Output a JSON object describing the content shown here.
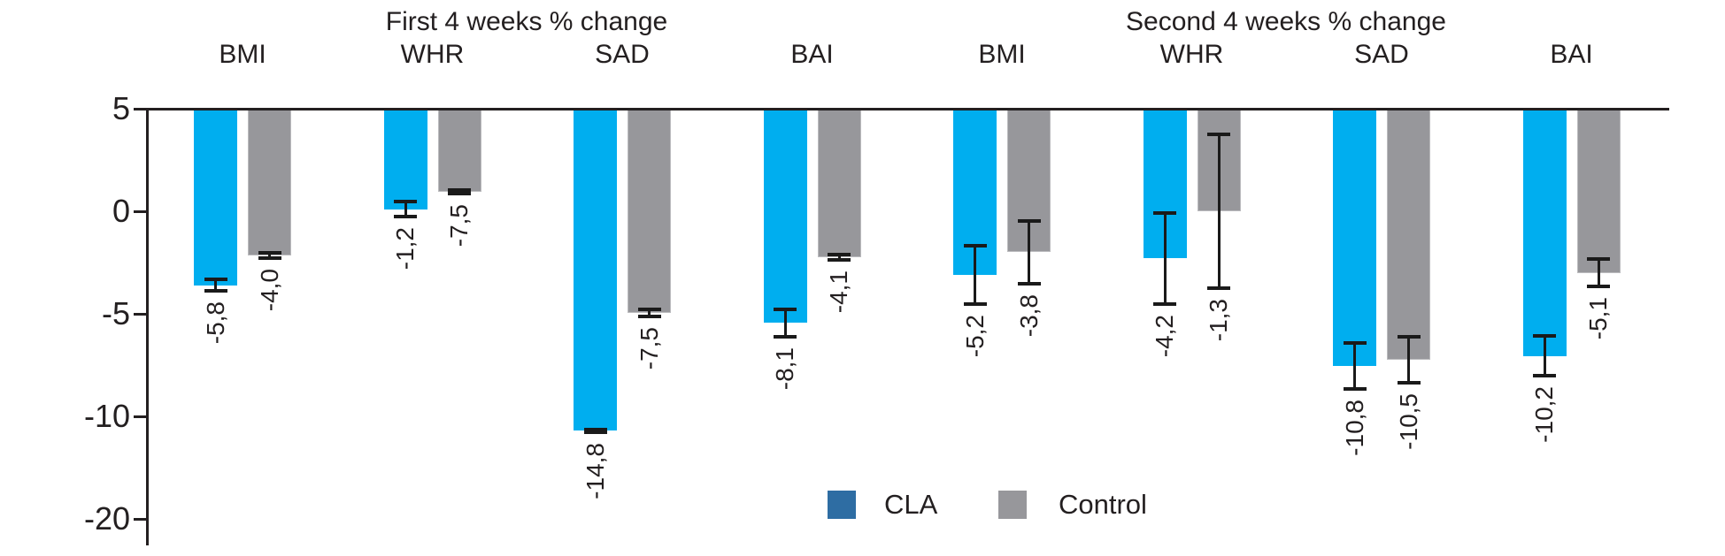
{
  "chart_data": {
    "type": "bar",
    "panels": [
      {
        "title": "First 4 weeks % change",
        "categories": [
          "BMI",
          "WHR",
          "SAD",
          "BAI"
        ]
      },
      {
        "title": "Second 4 weeks % change",
        "categories": [
          "BMI",
          "WHR",
          "SAD",
          "BAI"
        ]
      }
    ],
    "series": [
      {
        "name": "CLA",
        "color": "#00AEEF"
      },
      {
        "name": "Control",
        "color": "#97979B"
      }
    ],
    "legend": {
      "cla_label": "CLA",
      "control_label": "Control",
      "cla_swatch_color": "#2E6DA3",
      "control_swatch_color": "#97979B",
      "position": "bottom-center"
    },
    "y_axis": {
      "tick_labels": [
        "5",
        "0",
        "-5",
        "-10",
        "-20"
      ],
      "note": "ticks printed at equal spacing; bars hang from the top (+5) line",
      "grid": false
    },
    "groups": [
      {
        "panel": "First 4 weeks % change",
        "category": "BMI",
        "cla": {
          "label": "-5,8",
          "bar_end": -3.6,
          "err": 0.35
        },
        "control": {
          "label": "-4,0",
          "bar_end": -2.15,
          "err": 0.2
        }
      },
      {
        "panel": "First 4 weeks % change",
        "category": "WHR",
        "cla": {
          "label": "-1,2",
          "bar_end": 0.1,
          "err": 0.45
        },
        "control": {
          "label": "-7,5",
          "bar_end": 0.95,
          "err": 0.18
        }
      },
      {
        "panel": "First 4 weeks % change",
        "category": "SAD",
        "cla": {
          "label": "-14,8",
          "bar_end": -10.7,
          "err": 0.15
        },
        "control": {
          "label": "-7,5",
          "bar_end": -4.95,
          "err": 0.27
        }
      },
      {
        "panel": "First 4 weeks % change",
        "category": "BAI",
        "cla": {
          "label": "-8,1",
          "bar_end": -5.45,
          "err": 0.75
        },
        "control": {
          "label": "-4,1",
          "bar_end": -2.25,
          "err": 0.22
        }
      },
      {
        "panel": "Second 4 weeks % change",
        "category": "BMI",
        "cla": {
          "label": "-5,2",
          "bar_end": -3.1,
          "err": 1.5
        },
        "control": {
          "label": "-3,8",
          "bar_end": -2.0,
          "err": 1.6
        }
      },
      {
        "panel": "Second 4 weeks % change",
        "category": "WHR",
        "cla": {
          "label": "-4,2",
          "bar_end": -2.3,
          "err": 2.3
        },
        "control": {
          "label": "-1,3",
          "bar_end": 0.0,
          "err": 3.85
        }
      },
      {
        "panel": "Second 4 weeks % change",
        "category": "SAD",
        "cla": {
          "label": "-10,8",
          "bar_end": -7.55,
          "err": 1.2
        },
        "control": {
          "label": "-10,5",
          "bar_end": -7.25,
          "err": 1.2
        }
      },
      {
        "panel": "Second 4 weeks % change",
        "category": "BAI",
        "cla": {
          "label": "-10,2",
          "bar_end": -7.05,
          "err": 1.05
        },
        "control": {
          "label": "-5,1",
          "bar_end": -3.0,
          "err": 0.75
        }
      }
    ],
    "values_as_printed": {
      "CLA": [
        -5.8,
        -1.2,
        -14.8,
        -8.1,
        -5.2,
        -4.2,
        -10.8,
        -10.2
      ],
      "Control": [
        -4.0,
        -7.5,
        -7.5,
        -4.1,
        -3.8,
        -1.3,
        -10.5,
        -5.1
      ]
    }
  }
}
